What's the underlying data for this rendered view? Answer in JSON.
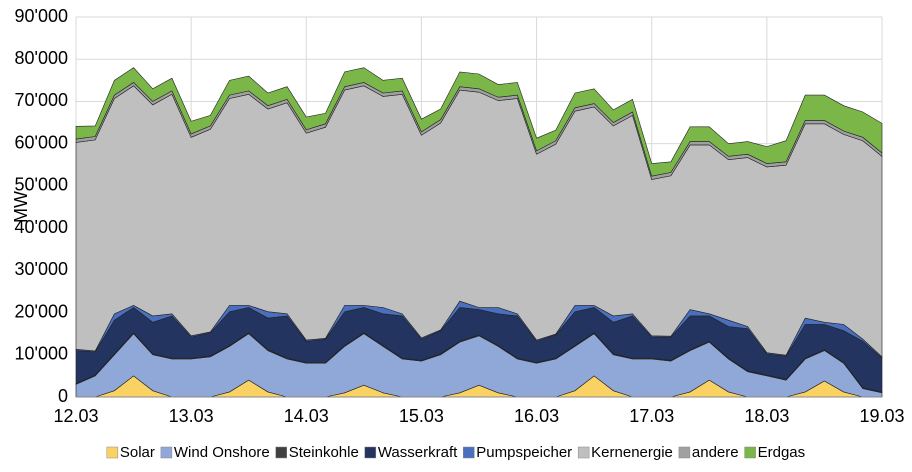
{
  "chart_data": {
    "type": "stacked_area",
    "y_label": "MW",
    "categories": [
      "12.03",
      null,
      null,
      null,
      null,
      null,
      "13.03",
      null,
      null,
      null,
      null,
      null,
      "14.03",
      null,
      null,
      null,
      null,
      null,
      "15.03",
      null,
      null,
      null,
      null,
      null,
      "16.03",
      null,
      null,
      null,
      null,
      null,
      "17.03",
      null,
      null,
      null,
      null,
      null,
      "18.03",
      null,
      null,
      null,
      null,
      null,
      "19.03"
    ],
    "ylim": [
      0,
      90000
    ],
    "yticks": [
      {
        "value": 0,
        "label": "0"
      },
      {
        "value": 10000,
        "label": "10'000"
      },
      {
        "value": 20000,
        "label": "20'000"
      },
      {
        "value": 30000,
        "label": "30'000"
      },
      {
        "value": 40000,
        "label": "40'000"
      },
      {
        "value": 50000,
        "label": "50'000"
      },
      {
        "value": 60000,
        "label": "60'000"
      },
      {
        "value": 70000,
        "label": "70'000"
      },
      {
        "value": 80000,
        "label": "80'000"
      },
      {
        "value": 90000,
        "label": "90'000"
      }
    ],
    "grid": true,
    "legend": "bottom",
    "series": [
      {
        "name": "Solar",
        "color": "#fad264",
        "values": [
          0,
          0,
          1500,
          5000,
          1500,
          0,
          0,
          0,
          1200,
          4000,
          1200,
          0,
          0,
          0,
          1000,
          2800,
          1000,
          0,
          0,
          0,
          1000,
          2800,
          1000,
          0,
          0,
          0,
          1500,
          5000,
          1500,
          0,
          0,
          0,
          1200,
          4000,
          1200,
          0,
          0,
          0,
          1200,
          3800,
          1200,
          0,
          0
        ]
      },
      {
        "name": "Wind Onshore",
        "color": "#8fa8d8",
        "values": [
          3000,
          5000,
          8500,
          10000,
          8500,
          9000,
          9000,
          9500,
          10800,
          11000,
          9800,
          9000,
          8000,
          8000,
          11000,
          12200,
          11000,
          9000,
          8500,
          10000,
          12000,
          11700,
          11000,
          9000,
          8000,
          9000,
          10500,
          10000,
          8500,
          9000,
          9000,
          8500,
          9800,
          9000,
          7800,
          6000,
          5000,
          4000,
          7800,
          7200,
          6800,
          2000,
          1000
        ]
      },
      {
        "name": "Steinkohle",
        "color": "#404040",
        "values": [
          200,
          200,
          200,
          200,
          200,
          200,
          200,
          200,
          200,
          200,
          200,
          200,
          200,
          200,
          200,
          200,
          200,
          200,
          200,
          200,
          200,
          200,
          200,
          200,
          200,
          200,
          200,
          200,
          200,
          200,
          200,
          200,
          200,
          200,
          200,
          200,
          200,
          200,
          200,
          200,
          200,
          200,
          200
        ]
      },
      {
        "name": "Wasserkraft",
        "color": "#22345f",
        "values": [
          7800,
          5500,
          8000,
          6000,
          7500,
          10000,
          5000,
          5500,
          8000,
          6000,
          7500,
          10000,
          5000,
          5500,
          8000,
          6000,
          7500,
          10000,
          5000,
          5500,
          8000,
          6000,
          7500,
          10000,
          5000,
          5500,
          8000,
          6000,
          7500,
          10000,
          5000,
          5500,
          8000,
          6000,
          7500,
          10000,
          5000,
          5500,
          8000,
          6000,
          7500,
          11000,
          8000
        ]
      },
      {
        "name": "Pumpspeicher",
        "color": "#4a6fbf",
        "values": [
          300,
          200,
          1500,
          500,
          1500,
          500,
          300,
          200,
          1500,
          500,
          1500,
          500,
          300,
          200,
          1500,
          500,
          1500,
          500,
          300,
          200,
          1500,
          500,
          1500,
          500,
          300,
          200,
          1500,
          500,
          1500,
          500,
          300,
          200,
          1500,
          500,
          1500,
          500,
          300,
          200,
          1500,
          500,
          1500,
          500,
          300
        ]
      },
      {
        "name": "Kernenergie",
        "color": "#bfbfbf",
        "values": [
          49000,
          50000,
          51000,
          52000,
          50000,
          52000,
          47000,
          48000,
          49000,
          50000,
          48000,
          50000,
          49000,
          50000,
          51000,
          52000,
          50000,
          52000,
          48000,
          49000,
          50000,
          51000,
          49000,
          51000,
          44000,
          45000,
          46000,
          47000,
          45000,
          47000,
          37000,
          38000,
          39000,
          40000,
          38000,
          40000,
          44000,
          45000,
          46000,
          47000,
          45000,
          47000,
          47500
        ]
      },
      {
        "name": "andere",
        "color": "#a0a0a0",
        "values": [
          800,
          800,
          800,
          800,
          800,
          800,
          800,
          800,
          800,
          800,
          800,
          800,
          800,
          800,
          800,
          800,
          800,
          800,
          800,
          800,
          800,
          800,
          800,
          800,
          800,
          800,
          800,
          800,
          800,
          800,
          800,
          800,
          800,
          800,
          800,
          800,
          800,
          800,
          800,
          800,
          800,
          800,
          800
        ]
      },
      {
        "name": "Erdgas",
        "color": "#7ab648",
        "values": [
          3000,
          2500,
          3500,
          3500,
          3000,
          3000,
          3000,
          2500,
          3500,
          3500,
          3000,
          3000,
          3000,
          2500,
          3500,
          3500,
          3000,
          3000,
          3000,
          2500,
          3500,
          3500,
          3000,
          3000,
          3000,
          2500,
          3500,
          3500,
          3000,
          3000,
          3000,
          2500,
          3500,
          3500,
          3000,
          3000,
          4000,
          5000,
          6000,
          6000,
          6000,
          6000,
          7000
        ]
      }
    ]
  }
}
